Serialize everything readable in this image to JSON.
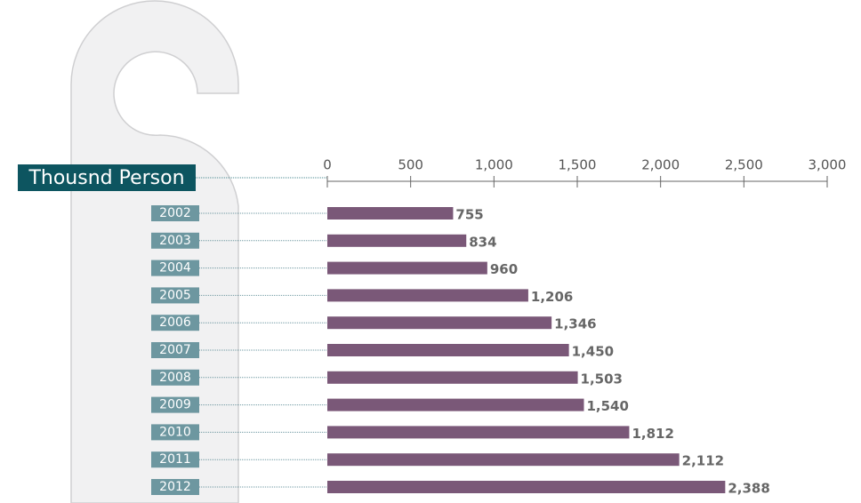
{
  "chart_data": {
    "type": "bar",
    "orientation": "horizontal",
    "axis_label": "Thousnd Person",
    "categories": [
      "2002",
      "2003",
      "2004",
      "2005",
      "2006",
      "2007",
      "2008",
      "2009",
      "2010",
      "2011",
      "2012"
    ],
    "values": [
      755,
      834,
      960,
      1206,
      1346,
      1450,
      1503,
      1540,
      1812,
      2112,
      2388
    ],
    "value_labels": [
      "755",
      "834",
      "960",
      "1,206",
      "1,346",
      "1,450",
      "1,503",
      "1,540",
      "1,812",
      "2,112",
      "2,388"
    ],
    "color": "#7a5878",
    "xlim": [
      0,
      3000
    ],
    "xticks": [
      0,
      500,
      {
        "value": 1000,
        "label": "1,000"
      },
      {
        "value": 1500,
        "label": "1,500"
      },
      {
        "value": 2000,
        "label": "2,000"
      },
      {
        "value": 2500,
        "label": "2,500"
      },
      {
        "value": 3000,
        "label": "3,000"
      }
    ]
  }
}
